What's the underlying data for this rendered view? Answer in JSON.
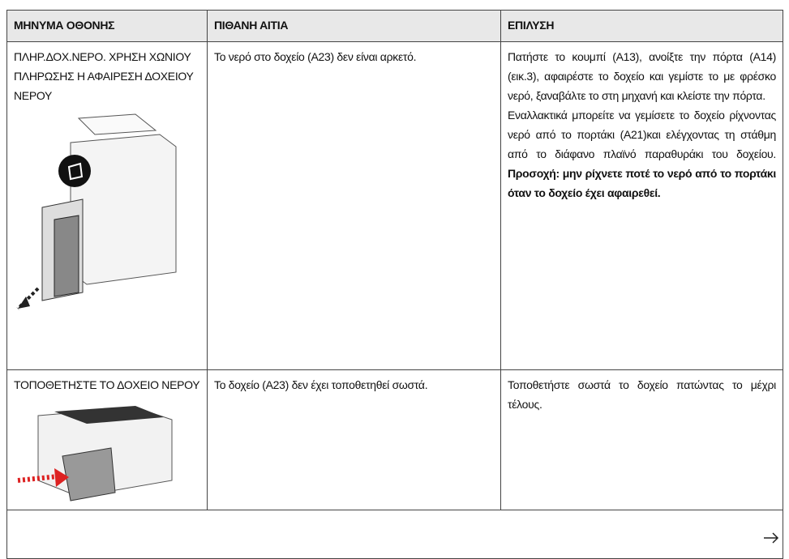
{
  "table": {
    "header": [
      "ΜΗΝΥΜΑ ΟΘΟΝΗΣ",
      "ΠΙΘΑΝΗ ΑΙΤΙΑ",
      "ΕΠΙΛΥΣΗ"
    ],
    "rows": [
      {
        "message": "ΠΛΗΡ.ΔΟΧ.ΝΕΡΟ. ΧΡΗΣΗ ΧΩΝΙΟΥ ΠΛΗΡΩΣΗΣ Η ΑΦΑΙΡΕΣΗ ΔΟΧΕΙΟΥ ΝΕΡΟΥ",
        "cause": "Το νερό στο δοχείο (A23) δεν είναι αρκετό.",
        "solution": [
          "Πατήστε το κουμπί (A13), ανοίξτε την πόρτα (A14) (εικ.3), αφαιρέστε το δοχείο και γεμίστε το με φρέσκο νερό, ξαναβάλτε το στη μηχανή και κλείστε την πόρτα.",
          "Εναλλακτικά μπορείτε να γεμίσετε το δοχείο ρίχνοντας νερό από το πορτάκι (A21)και ελέγχοντας τη στάθμη από το διάφανο πλαϊνό παραθυράκι του δοχείου.",
          "Προσοχή: μην ρίχνετε ποτέ το νερό από το πορτάκι όταν το δοχείο έχει αφαιρεθεί."
        ]
      },
      {
        "message": "ΤΟΠΟΘΕΤΗΣΤΕ ΤΟ ΔΟΧΕΙΟ ΝΕΡΟΥ",
        "cause": "Το δοχείο (A23) δεν έχει τοποθετηθεί σωστά.",
        "solution": [
          "Τοποθετήστε σωστά το δοχείο πατώντας το μέχρι τέλους."
        ]
      }
    ]
  }
}
